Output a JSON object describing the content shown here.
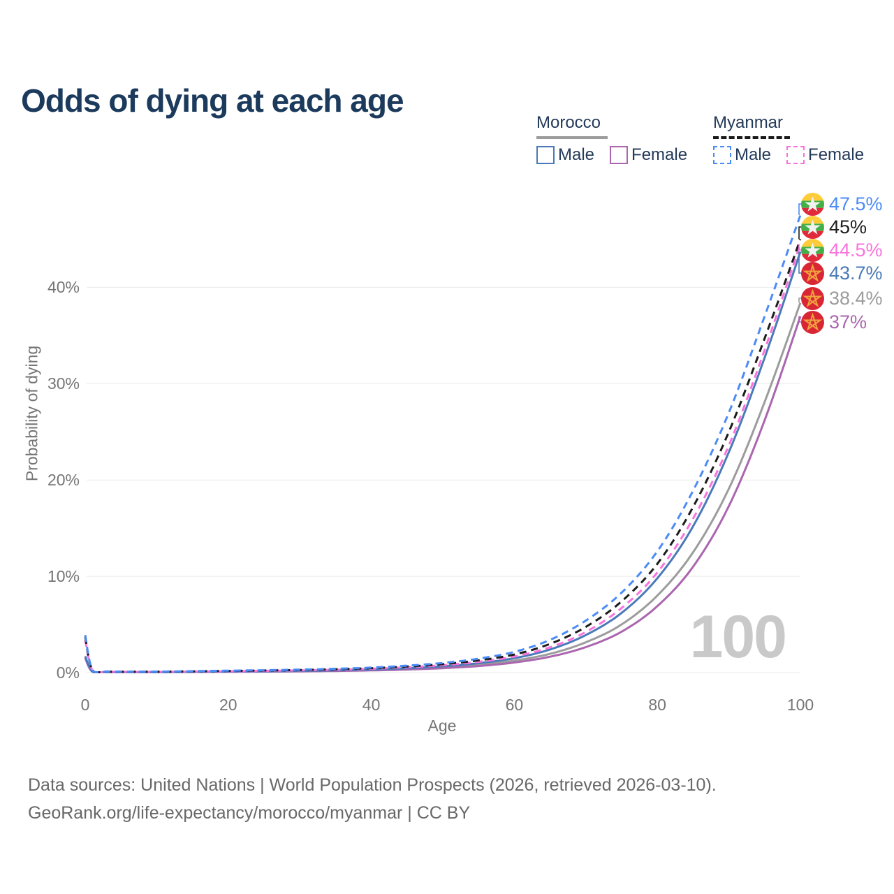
{
  "title": "Odds of dying at each age",
  "watermark": "100",
  "legend": {
    "groups": [
      {
        "id": "morocco",
        "title": "Morocco",
        "line_style": "solid",
        "underline_color": "#9c9c9c",
        "items": [
          {
            "series": "morocco_male",
            "label": "Male"
          },
          {
            "series": "morocco_female",
            "label": "Female"
          }
        ]
      },
      {
        "id": "myanmar",
        "title": "Myanmar",
        "line_style": "dashed",
        "underline_color": "#1a1a1a",
        "items": [
          {
            "series": "myanmar_male",
            "label": "Male"
          },
          {
            "series": "myanmar_female",
            "label": "Female"
          }
        ]
      }
    ]
  },
  "colors": {
    "title_text": "#1b3a5c",
    "legend_text": "#243a5a",
    "axis_text": "#757575",
    "gridline": "#e9e9e9",
    "watermark": "#c9c9c9",
    "footer_text": "#686868",
    "myanmar_flag_yellow": "#FECB3B",
    "myanmar_flag_green": "#43B047",
    "myanmar_flag_red": "#E02A3A",
    "morocco_flag_red": "#D92635",
    "morocco_flag_star": "#F0A43C"
  },
  "chart_data": {
    "type": "line",
    "title": "Odds of dying at each age",
    "xlabel": "Age",
    "ylabel": "Probability of dying",
    "xlim": [
      0,
      100
    ],
    "ylim": [
      0,
      49
    ],
    "grid": "horizontal",
    "legend_position": "top-right",
    "x_ticks": [
      0,
      20,
      40,
      60,
      80,
      100
    ],
    "y_ticks": [
      {
        "value": 0,
        "label": "0%"
      },
      {
        "value": 10,
        "label": "10%"
      },
      {
        "value": 20,
        "label": "20%"
      },
      {
        "value": 30,
        "label": "30%"
      },
      {
        "value": 40,
        "label": "40%"
      }
    ],
    "x": [
      0,
      1,
      3,
      5,
      10,
      15,
      20,
      25,
      30,
      35,
      40,
      45,
      50,
      55,
      60,
      65,
      70,
      75,
      80,
      85,
      90,
      95,
      100
    ],
    "series": [
      {
        "id": "myanmar_male",
        "name": "Myanmar Male",
        "country": "Myanmar",
        "sex": "Male",
        "dashed": true,
        "color": "#4c8bf5",
        "flag": "myanmar",
        "end_label": "47.5%",
        "values": [
          3.9,
          0.3,
          0.12,
          0.1,
          0.1,
          0.15,
          0.2,
          0.25,
          0.31,
          0.4,
          0.52,
          0.72,
          1.0,
          1.45,
          2.15,
          3.4,
          5.4,
          8.3,
          12.6,
          18.9,
          27.0,
          37.0,
          47.5
        ]
      },
      {
        "id": "myanmar_total",
        "name": "Myanmar Total",
        "country": "Myanmar",
        "sex": "Total",
        "dashed": true,
        "color": "#1c1c1c",
        "flag": "myanmar",
        "end_label": "45%",
        "values": [
          3.7,
          0.28,
          0.11,
          0.09,
          0.09,
          0.13,
          0.17,
          0.22,
          0.27,
          0.35,
          0.46,
          0.63,
          0.88,
          1.27,
          1.88,
          2.98,
          4.75,
          7.4,
          11.3,
          17.2,
          25.0,
          34.7,
          45.0
        ]
      },
      {
        "id": "myanmar_female",
        "name": "Myanmar Female",
        "country": "Myanmar",
        "sex": "Female",
        "dashed": true,
        "color": "#f973dd",
        "flag": "myanmar",
        "end_label": "44.5%",
        "values": [
          3.4,
          0.26,
          0.1,
          0.08,
          0.08,
          0.11,
          0.14,
          0.18,
          0.23,
          0.3,
          0.4,
          0.55,
          0.77,
          1.12,
          1.67,
          2.63,
          4.22,
          6.7,
          10.4,
          16.0,
          23.6,
          33.5,
          44.5
        ]
      },
      {
        "id": "morocco_male",
        "name": "Morocco Male",
        "country": "Morocco",
        "sex": "Male",
        "dashed": false,
        "color": "#4a7ab8",
        "flag": "morocco",
        "end_label": "43.7%",
        "values": [
          1.7,
          0.12,
          0.06,
          0.05,
          0.05,
          0.08,
          0.11,
          0.14,
          0.18,
          0.24,
          0.32,
          0.45,
          0.66,
          0.98,
          1.5,
          2.4,
          3.9,
          6.2,
          9.8,
          15.2,
          22.9,
          32.7,
          43.7
        ]
      },
      {
        "id": "morocco_total",
        "name": "Morocco Total",
        "country": "Morocco",
        "sex": "Total",
        "dashed": false,
        "color": "#9c9c9c",
        "flag": "morocco",
        "end_label": "38.4%",
        "values": [
          1.6,
          0.11,
          0.05,
          0.04,
          0.04,
          0.07,
          0.09,
          0.12,
          0.15,
          0.2,
          0.27,
          0.38,
          0.55,
          0.82,
          1.25,
          1.95,
          3.15,
          5.0,
          8.0,
          12.5,
          19.1,
          28.1,
          38.4
        ]
      },
      {
        "id": "morocco_female",
        "name": "Morocco Female",
        "country": "Morocco",
        "sex": "Female",
        "dashed": false,
        "color": "#aa66ae",
        "flag": "morocco",
        "end_label": "37%",
        "values": [
          1.5,
          0.1,
          0.05,
          0.04,
          0.04,
          0.06,
          0.08,
          0.1,
          0.13,
          0.17,
          0.23,
          0.32,
          0.46,
          0.68,
          1.05,
          1.65,
          2.65,
          4.25,
          6.9,
          11.0,
          17.3,
          26.2,
          37.0
        ]
      }
    ]
  },
  "footer": {
    "line1": "Data sources: United Nations | World Population Prospects (2026, retrieved 2026-03-10).",
    "line2": "GeoRank.org/life-expectancy/morocco/myanmar | CC BY"
  }
}
